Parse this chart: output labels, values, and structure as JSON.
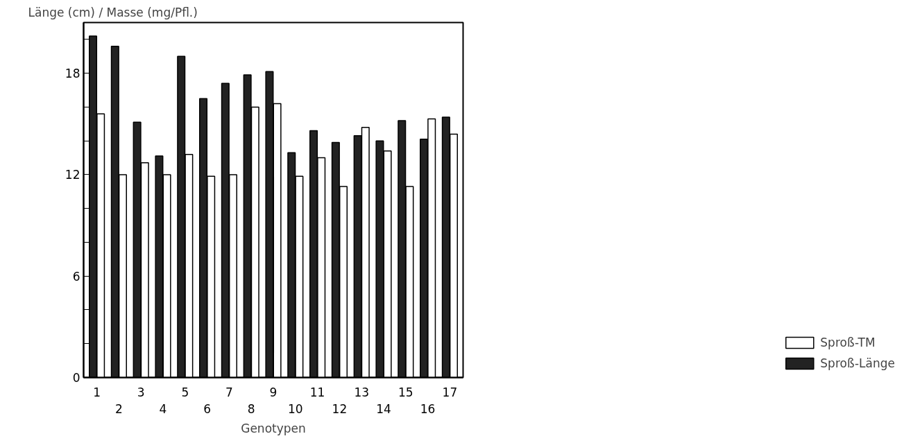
{
  "chart_data": {
    "type": "bar",
    "ylabel": "Länge (cm) / Masse (mg/Pfl.)",
    "xlabel": "Genotypen",
    "categories": [
      "1",
      "2",
      "3",
      "4",
      "5",
      "6",
      "7",
      "8",
      "9",
      "10",
      "11",
      "12",
      "13",
      "14",
      "15",
      "16",
      "17"
    ],
    "series": [
      {
        "name": "Sproß-Länge",
        "color": "#222222",
        "values": [
          20.2,
          19.6,
          15.1,
          13.1,
          19.0,
          16.5,
          17.4,
          17.9,
          18.1,
          13.3,
          14.6,
          13.9,
          14.3,
          14.0,
          15.2,
          14.1,
          15.4
        ]
      },
      {
        "name": "Sproß-TM",
        "color": "#ffffff",
        "values": [
          15.6,
          12.0,
          12.7,
          12.0,
          13.2,
          11.9,
          12.0,
          16.0,
          16.2,
          11.9,
          13.0,
          11.3,
          14.8,
          13.4,
          11.3,
          15.3,
          14.4
        ]
      }
    ],
    "ylim": [
      0,
      21
    ],
    "yticks": [
      0,
      {
        "value": 2,
        "label": null
      },
      {
        "value": 4,
        "label": null
      },
      6,
      {
        "value": 8,
        "label": null
      },
      {
        "value": 10,
        "label": null
      },
      12,
      {
        "value": 14,
        "label": null
      },
      {
        "value": 16,
        "label": null
      },
      18,
      {
        "value": 20,
        "label": null
      }
    ],
    "grid": false,
    "legend": "bottom right"
  }
}
